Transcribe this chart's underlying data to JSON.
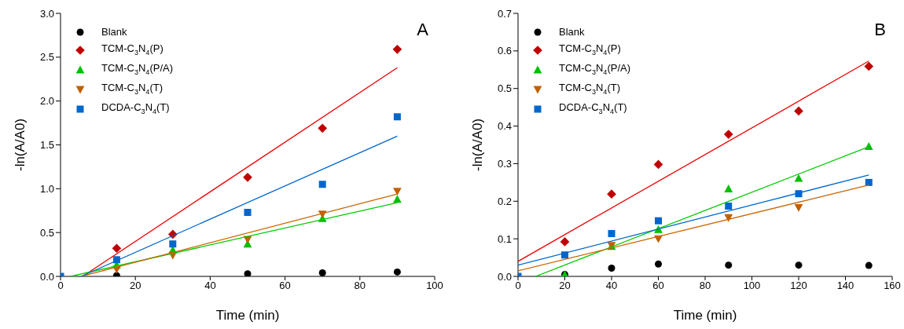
{
  "chart_data": [
    {
      "type": "scatter",
      "xlabel": "Time (min)",
      "ylabel": "-ln(A/A0)",
      "annotations": [
        "A"
      ],
      "legend": "top left",
      "xlim": [
        0,
        100
      ],
      "xticks": [
        0,
        20,
        40,
        60,
        80,
        100
      ],
      "ylim": [
        0,
        3
      ],
      "yticks": [
        {
          "value": 0,
          "label": "0.0"
        },
        {
          "value": 0.5,
          "label": "0.5"
        },
        {
          "value": 1,
          "label": "1.0"
        },
        {
          "value": 1.5,
          "label": "1.5"
        },
        {
          "value": 2,
          "label": "2.0"
        },
        {
          "value": 2.5,
          "label": "2.5"
        },
        {
          "value": 3,
          "label": "3.0"
        }
      ],
      "x": [
        0,
        15,
        30,
        50,
        70,
        90
      ],
      "series": [
        {
          "name": "Blank",
          "color": "#000000",
          "marker": "circle",
          "values": [
            null,
            0.01,
            null,
            0.03,
            0.04,
            0.05
          ]
        },
        {
          "name": "TCM-C$_{3}$N$_{4}$(P)",
          "color": "#c00000",
          "marker": "diamond",
          "values": [
            null,
            0.32,
            0.48,
            1.13,
            1.69,
            2.59
          ]
        },
        {
          "name": "TCM-C$_{3}$N$_{4}$(P/A)",
          "color": "#00c000",
          "marker": "triangle",
          "values": [
            null,
            0.13,
            0.3,
            0.37,
            0.66,
            0.88
          ]
        },
        {
          "name": "TCM-C$_{3}$N$_{4}$(T)",
          "color": "#c06000",
          "marker": "triangle-down",
          "values": [
            null,
            0.08,
            0.24,
            0.42,
            0.71,
            0.97
          ]
        },
        {
          "name": "DCDA-C$_{3}$N$_{4}$(T)",
          "color": "#0066cc",
          "marker": "square",
          "values": [
            0,
            0.19,
            0.37,
            0.73,
            1.05,
            1.82
          ]
        },
        {
          "type": "line",
          "color": "#ee0000",
          "x": [
            5.9,
            90
          ],
          "values": [
            0,
            2.38
          ]
        },
        {
          "type": "line",
          "color": "#00cc00",
          "x": [
            2.7,
            90
          ],
          "values": [
            0,
            0.84
          ]
        },
        {
          "type": "line",
          "color": "#cc6600",
          "x": [
            5.5,
            90
          ],
          "values": [
            0,
            0.94
          ]
        },
        {
          "type": "line",
          "color": "#0066cc",
          "x": [
            5.5,
            90
          ],
          "values": [
            0,
            1.6
          ]
        }
      ]
    },
    {
      "type": "scatter",
      "xlabel": "Time (min)",
      "ylabel": "-ln(A/A0)",
      "annotations": [
        "B"
      ],
      "legend": "top left",
      "xlim": [
        0,
        160
      ],
      "xticks": [
        0,
        20,
        40,
        60,
        80,
        100,
        120,
        140,
        160
      ],
      "ylim": [
        0,
        0.7
      ],
      "yticks": [
        {
          "value": 0,
          "label": "0.0"
        },
        0.1,
        0.2,
        0.3,
        0.4,
        0.5,
        0.6,
        0.7
      ],
      "x": [
        0,
        20,
        40,
        60,
        90,
        120,
        150
      ],
      "series": [
        {
          "name": "Blank",
          "color": "#000000",
          "marker": "circle",
          "values": [
            null,
            0.005,
            0.022,
            0.033,
            0.03,
            0.03,
            0.029
          ]
        },
        {
          "name": "TCM-C$_{3}$N$_{4}$(P)",
          "color": "#c00000",
          "marker": "diamond",
          "values": [
            null,
            0.092,
            0.219,
            0.298,
            0.378,
            0.44,
            0.559
          ]
        },
        {
          "name": "TCM-C$_{3}$N$_{4}$(P/A)",
          "color": "#00c000",
          "marker": "triangle",
          "values": [
            null,
            0.005,
            0.08,
            0.125,
            0.233,
            0.261,
            0.346
          ]
        },
        {
          "name": "TCM-C$_{3}$N$_{4}$(T)",
          "color": "#c06000",
          "marker": "triangle-down",
          "values": [
            null,
            null,
            0.082,
            0.1,
            0.156,
            0.183,
            null
          ]
        },
        {
          "name": "DCDA-C$_{3}$N$_{4}$(T)",
          "color": "#0066cc",
          "marker": "square",
          "values": [
            0,
            0.057,
            0.114,
            0.148,
            0.187,
            0.22,
            0.25
          ]
        },
        {
          "type": "line",
          "color": "#ee0000",
          "x": [
            0,
            150
          ],
          "values": [
            0.04,
            0.573
          ]
        },
        {
          "type": "line",
          "color": "#00cc00",
          "x": [
            7.5,
            150
          ],
          "values": [
            0,
            0.345
          ]
        },
        {
          "type": "line",
          "color": "#cc6600",
          "x": [
            0,
            150
          ],
          "values": [
            0.015,
            0.243
          ]
        },
        {
          "type": "line",
          "color": "#0066cc",
          "x": [
            0,
            150
          ],
          "values": [
            0.03,
            0.27
          ]
        }
      ]
    }
  ]
}
